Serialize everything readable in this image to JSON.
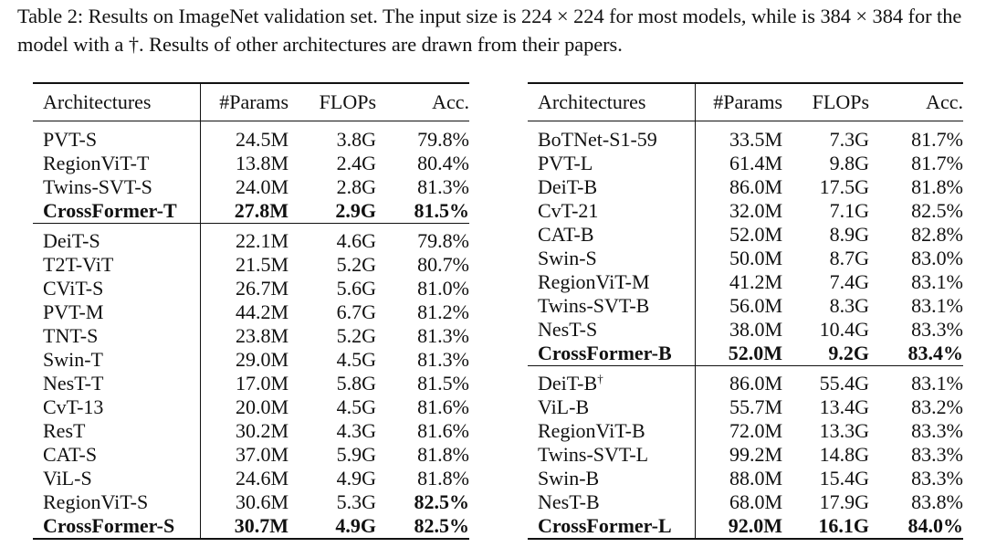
{
  "caption": {
    "part1": "Table 2: Results on ImageNet validation set. The input size is ",
    "size1": "224 × 224",
    "part2": " for most models, while is ",
    "size2": "384 × 384",
    "part3": " for the model with a †. Results of other architectures are drawn from their papers."
  },
  "headers": {
    "architectures": "Architectures",
    "params": "#Params",
    "flops": "FLOPs",
    "acc": "Acc."
  },
  "left_table": {
    "group1": [
      {
        "arch": "PVT-S",
        "params": "24.5M",
        "flops": "3.8G",
        "acc": "79.8%"
      },
      {
        "arch": "RegionViT-T",
        "params": "13.8M",
        "flops": "2.4G",
        "acc": "80.4%"
      },
      {
        "arch": "Twins-SVT-S",
        "params": "24.0M",
        "flops": "2.8G",
        "acc": "81.3%"
      },
      {
        "arch": "CrossFormer-T",
        "params": "27.8M",
        "flops": "2.9G",
        "acc": "81.5%"
      }
    ],
    "group2": [
      {
        "arch": "DeiT-S",
        "params": "22.1M",
        "flops": "4.6G",
        "acc": "79.8%"
      },
      {
        "arch": "T2T-ViT",
        "params": "21.5M",
        "flops": "5.2G",
        "acc": "80.7%"
      },
      {
        "arch": "CViT-S",
        "params": "26.7M",
        "flops": "5.6G",
        "acc": "81.0%"
      },
      {
        "arch": "PVT-M",
        "params": "44.2M",
        "flops": "6.7G",
        "acc": "81.2%"
      },
      {
        "arch": "TNT-S",
        "params": "23.8M",
        "flops": "5.2G",
        "acc": "81.3%"
      },
      {
        "arch": "Swin-T",
        "params": "29.0M",
        "flops": "4.5G",
        "acc": "81.3%"
      },
      {
        "arch": "NesT-T",
        "params": "17.0M",
        "flops": "5.8G",
        "acc": "81.5%"
      },
      {
        "arch": "CvT-13",
        "params": "20.0M",
        "flops": "4.5G",
        "acc": "81.6%"
      },
      {
        "arch": "ResT",
        "params": "30.2M",
        "flops": "4.3G",
        "acc": "81.6%"
      },
      {
        "arch": "CAT-S",
        "params": "37.0M",
        "flops": "5.9G",
        "acc": "81.8%"
      },
      {
        "arch": "ViL-S",
        "params": "24.6M",
        "flops": "4.9G",
        "acc": "81.8%"
      },
      {
        "arch": "RegionViT-S",
        "params": "30.6M",
        "flops": "5.3G",
        "acc": "82.5%"
      },
      {
        "arch": "CrossFormer-S",
        "params": "30.7M",
        "flops": "4.9G",
        "acc": "82.5%"
      }
    ]
  },
  "right_table": {
    "group1": [
      {
        "arch": "BoTNet-S1-59",
        "params": "33.5M",
        "flops": "7.3G",
        "acc": "81.7%"
      },
      {
        "arch": "PVT-L",
        "params": "61.4M",
        "flops": "9.8G",
        "acc": "81.7%"
      },
      {
        "arch": "DeiT-B",
        "params": "86.0M",
        "flops": "17.5G",
        "acc": "81.8%"
      },
      {
        "arch": "CvT-21",
        "params": "32.0M",
        "flops": "7.1G",
        "acc": "82.5%"
      },
      {
        "arch": "CAT-B",
        "params": "52.0M",
        "flops": "8.9G",
        "acc": "82.8%"
      },
      {
        "arch": "Swin-S",
        "params": "50.0M",
        "flops": "8.7G",
        "acc": "83.0%"
      },
      {
        "arch": "RegionViT-M",
        "params": "41.2M",
        "flops": "7.4G",
        "acc": "83.1%"
      },
      {
        "arch": "Twins-SVT-B",
        "params": "56.0M",
        "flops": "8.3G",
        "acc": "83.1%"
      },
      {
        "arch": "NesT-S",
        "params": "38.0M",
        "flops": "10.4G",
        "acc": "83.3%"
      },
      {
        "arch": "CrossFormer-B",
        "params": "52.0M",
        "flops": "9.2G",
        "acc": "83.4%"
      }
    ],
    "group2": [
      {
        "arch": "DeiT-B",
        "sup": "†",
        "params": "86.0M",
        "flops": "55.4G",
        "acc": "83.1%"
      },
      {
        "arch": "ViL-B",
        "params": "55.7M",
        "flops": "13.4G",
        "acc": "83.2%"
      },
      {
        "arch": "RegionViT-B",
        "params": "72.0M",
        "flops": "13.3G",
        "acc": "83.3%"
      },
      {
        "arch": "Twins-SVT-L",
        "params": "99.2M",
        "flops": "14.8G",
        "acc": "83.3%"
      },
      {
        "arch": "Swin-B",
        "params": "88.0M",
        "flops": "15.4G",
        "acc": "83.3%"
      },
      {
        "arch": "NesT-B",
        "params": "68.0M",
        "flops": "17.9G",
        "acc": "83.8%"
      },
      {
        "arch": "CrossFormer-L",
        "params": "92.0M",
        "flops": "16.1G",
        "acc": "84.0%"
      }
    ]
  }
}
